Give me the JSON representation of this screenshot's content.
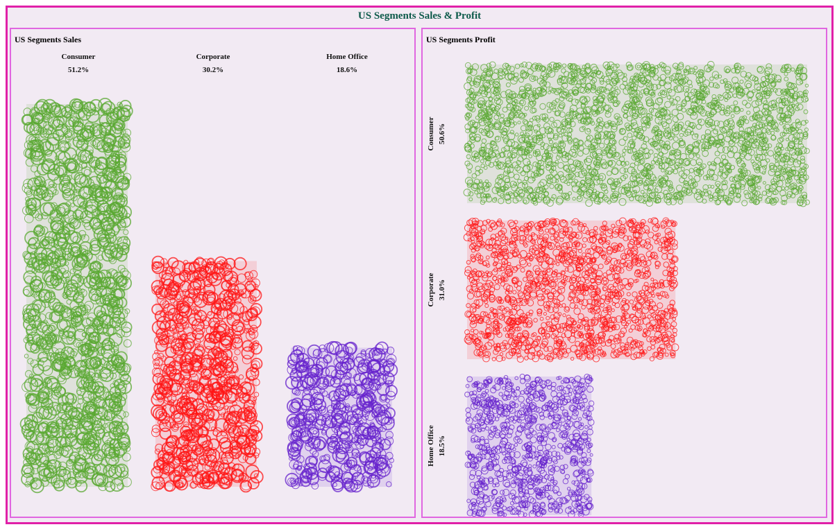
{
  "title": "US Segments Sales & Profit",
  "colors": {
    "frame": "#e020a8",
    "panel_border": "#e066e0",
    "background": "#f2eaf3",
    "title": "#0d5a4a"
  },
  "chart_data": [
    {
      "type": "bar",
      "orientation": "vertical",
      "title": "US Segments Sales",
      "categories": [
        "Consumer",
        "Corporate",
        "Home Office"
      ],
      "values": [
        51.2,
        30.2,
        18.6
      ],
      "value_labels": [
        "51.2%",
        "30.2%",
        "18.6%"
      ],
      "colors": [
        "#5aa832",
        "#ff1414",
        "#6622cc"
      ],
      "mark": "flower-glyph scatter"
    },
    {
      "type": "bar",
      "orientation": "horizontal",
      "title": "US Segments Profit",
      "categories": [
        "Consumer",
        "Corporate",
        "Home Office"
      ],
      "values": [
        50.6,
        31.0,
        18.5
      ],
      "value_labels": [
        "50.6%",
        "31.0%",
        "18.5%"
      ],
      "colors": [
        "#5aa832",
        "#ff1414",
        "#6622cc"
      ],
      "mark": "flower-glyph scatter"
    }
  ]
}
